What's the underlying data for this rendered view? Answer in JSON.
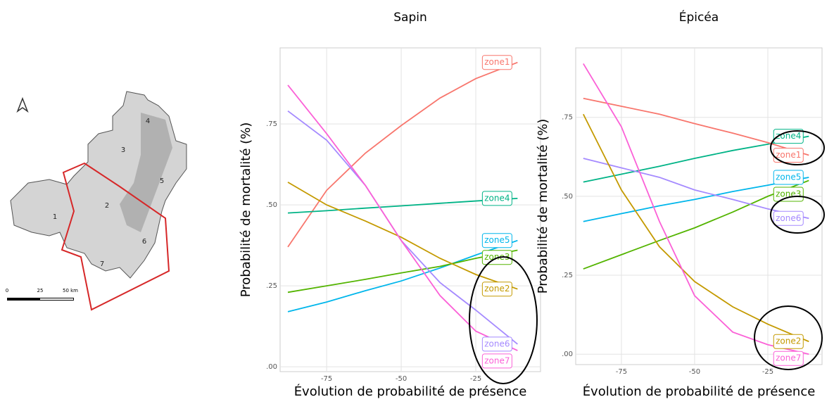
{
  "map": {
    "zones": [
      "1",
      "2",
      "3",
      "4",
      "5",
      "6",
      "7"
    ],
    "scale": [
      "0",
      "25",
      "50 km"
    ]
  },
  "chart_data": [
    {
      "type": "line",
      "title": "Sapin",
      "x_label": "Évolution de probabilité de présence",
      "y_label": "Probabilité de mortalité (%)",
      "x": [
        -88,
        -75,
        -62,
        -50,
        -37,
        -25,
        -11
      ],
      "series": [
        {
          "name": "zone1",
          "color": "#f8766d",
          "values": [
            0.37,
            0.545,
            0.66,
            0.745,
            0.83,
            0.89,
            0.94
          ]
        },
        {
          "name": "zone4",
          "color": "#00b386",
          "values": [
            0.475,
            0.482,
            0.49,
            0.497,
            0.505,
            0.512,
            0.52
          ]
        },
        {
          "name": "zone5",
          "color": "#00b6eb",
          "values": [
            0.17,
            0.2,
            0.235,
            0.265,
            0.305,
            0.345,
            0.39
          ]
        },
        {
          "name": "zone3",
          "color": "#53b400",
          "values": [
            0.23,
            0.25,
            0.27,
            0.29,
            0.31,
            0.335,
            0.36
          ]
        },
        {
          "name": "zone2",
          "color": "#c49a00",
          "values": [
            0.57,
            0.5,
            0.45,
            0.4,
            0.335,
            0.285,
            0.24
          ]
        },
        {
          "name": "zone6",
          "color": "#a58aff",
          "values": [
            0.79,
            0.7,
            0.56,
            0.39,
            0.26,
            0.175,
            0.07
          ]
        },
        {
          "name": "zone7",
          "color": "#fb61d7",
          "values": [
            0.87,
            0.72,
            0.56,
            0.39,
            0.22,
            0.11,
            0.05
          ]
        }
      ],
      "xlim": [
        -90.6,
        -3.3
      ],
      "ylim": [
        -0.015,
        0.985
      ],
      "xticks": [
        -75,
        -50,
        -25
      ],
      "yticks": [
        {
          "value": 0,
          "label": ".00"
        },
        {
          "value": 0.25,
          "label": ".25"
        },
        {
          "value": 0.5,
          "label": ".50"
        },
        {
          "value": 0.75,
          "label": ".75"
        }
      ],
      "grid": true
    },
    {
      "type": "line",
      "title": "Épicéa",
      "x_label": "Évolution de probabilité de présence",
      "y_label": "Probabilité de mortalité (%)",
      "x": [
        -88,
        -75,
        -62,
        -50,
        -37,
        -25,
        -11
      ],
      "series": [
        {
          "name": "zone4",
          "color": "#00b386",
          "values": [
            0.545,
            0.57,
            0.595,
            0.62,
            0.645,
            0.665,
            0.69
          ]
        },
        {
          "name": "zone1",
          "color": "#f8766d",
          "values": [
            0.81,
            0.785,
            0.76,
            0.73,
            0.7,
            0.67,
            0.63
          ]
        },
        {
          "name": "zone5",
          "color": "#00b6eb",
          "values": [
            0.42,
            0.445,
            0.47,
            0.49,
            0.515,
            0.535,
            0.56
          ]
        },
        {
          "name": "zone3",
          "color": "#53b400",
          "values": [
            0.27,
            0.315,
            0.36,
            0.4,
            0.45,
            0.5,
            0.55
          ]
        },
        {
          "name": "zone6",
          "color": "#a58aff",
          "values": [
            0.62,
            0.59,
            0.56,
            0.52,
            0.49,
            0.46,
            0.43
          ]
        },
        {
          "name": "zone2",
          "color": "#c49a00",
          "values": [
            0.76,
            0.52,
            0.34,
            0.23,
            0.15,
            0.095,
            0.04
          ]
        },
        {
          "name": "zone7",
          "color": "#fb61d7",
          "values": [
            0.92,
            0.72,
            0.42,
            0.185,
            0.07,
            0.03,
            0.0
          ]
        }
      ],
      "xlim": [
        -90.6,
        -6.5
      ],
      "ylim": [
        -0.033,
        0.97
      ],
      "xticks": [
        -75,
        -50,
        -25
      ],
      "yticks": [
        {
          "value": 0,
          "label": ".00"
        },
        {
          "value": 0.25,
          "label": ".25"
        },
        {
          "value": 0.5,
          "label": ".50"
        },
        {
          "value": 0.75,
          "label": ".75"
        }
      ],
      "grid": true
    }
  ]
}
